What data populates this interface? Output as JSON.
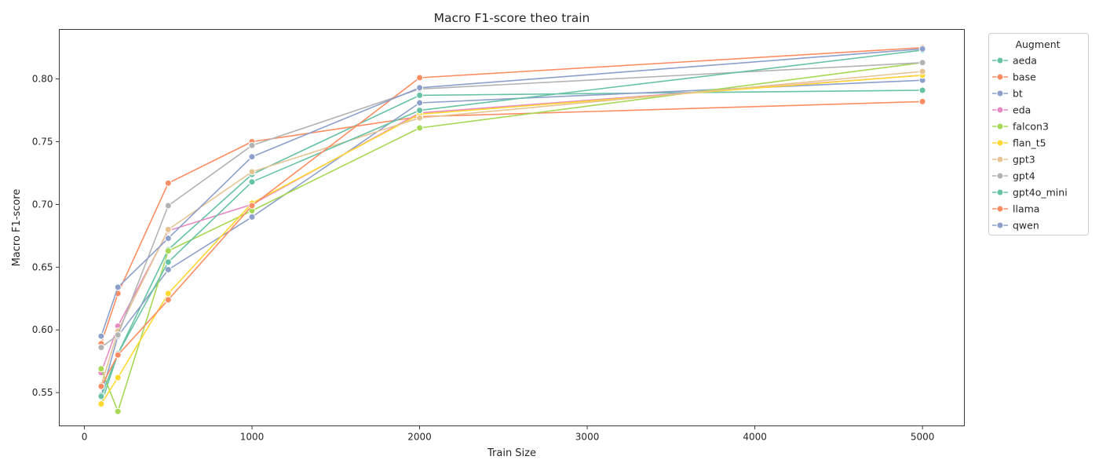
{
  "chart_data": {
    "type": "line",
    "title": "Macro F1-score theo train",
    "xlabel": "Train Size",
    "ylabel": "Macro F1-score",
    "xlim": [
      -150,
      5250
    ],
    "ylim": [
      0.5235,
      0.8395
    ],
    "xticks": [
      0,
      1000,
      2000,
      3000,
      4000,
      5000
    ],
    "yticks": [
      0.55,
      0.6,
      0.65,
      0.7,
      0.75,
      0.8
    ],
    "grid": false,
    "legend": {
      "title": "Augment",
      "placement": "outside-right"
    },
    "x": [
      100,
      200,
      500,
      1000,
      2000,
      5000
    ],
    "series": [
      {
        "name": "aeda",
        "color": "#66c2a5",
        "values": [
          0.541,
          0.581,
          0.664,
          0.724,
          0.787,
          0.791
        ]
      },
      {
        "name": "base",
        "color": "#fc8d62",
        "values": [
          0.589,
          0.629,
          0.717,
          0.75,
          0.77,
          0.782
        ]
      },
      {
        "name": "bt",
        "color": "#8da0cb",
        "values": [
          0.548,
          0.595,
          0.648,
          0.69,
          0.781,
          0.799
        ]
      },
      {
        "name": "eda",
        "color": "#e78ac3",
        "values": [
          0.566,
          0.603,
          0.679,
          0.7,
          0.773,
          0.803
        ]
      },
      {
        "name": "falcon3",
        "color": "#a6d854",
        "values": [
          0.569,
          0.535,
          0.663,
          0.695,
          0.761,
          0.813
        ]
      },
      {
        "name": "flan_t5",
        "color": "#ffd92f",
        "values": [
          0.541,
          0.562,
          0.629,
          0.701,
          0.772,
          0.803
        ]
      },
      {
        "name": "gpt3",
        "color": "#e5c494",
        "values": [
          0.556,
          0.599,
          0.68,
          0.726,
          0.769,
          0.806
        ]
      },
      {
        "name": "gpt4",
        "color": "#b3b3b3",
        "values": [
          0.586,
          0.596,
          0.699,
          0.747,
          0.792,
          0.813
        ]
      },
      {
        "name": "gpt4o_mini",
        "color": "#66c2a5",
        "values": [
          0.547,
          0.581,
          0.654,
          0.718,
          0.775,
          0.823
        ]
      },
      {
        "name": "llama",
        "color": "#fc8d62",
        "values": [
          0.555,
          0.58,
          0.624,
          0.699,
          0.801,
          0.825
        ]
      },
      {
        "name": "qwen",
        "color": "#8da0cb",
        "values": [
          0.595,
          0.634,
          0.673,
          0.738,
          0.793,
          0.824
        ]
      }
    ]
  }
}
